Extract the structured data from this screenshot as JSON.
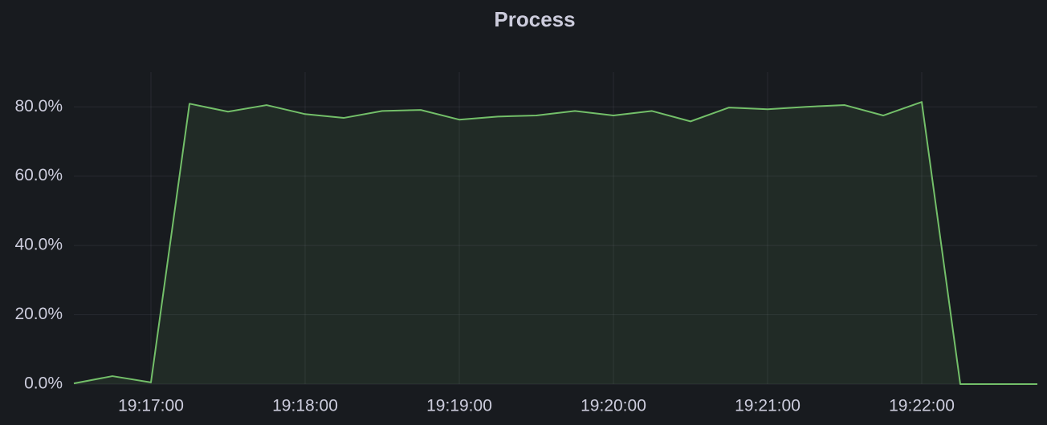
{
  "chart_data": {
    "type": "area",
    "title": "Process",
    "x": [
      "19:16:30",
      "19:16:45",
      "19:17:00",
      "19:17:15",
      "19:17:30",
      "19:17:45",
      "19:18:00",
      "19:18:15",
      "19:18:30",
      "19:18:45",
      "19:19:00",
      "19:19:15",
      "19:19:30",
      "19:19:45",
      "19:20:00",
      "19:20:15",
      "19:20:30",
      "19:20:45",
      "19:21:00",
      "19:21:15",
      "19:21:30",
      "19:21:45",
      "19:22:00",
      "19:22:15",
      "19:22:30",
      "19:22:45"
    ],
    "values": [
      0.2,
      2.3,
      0.5,
      80.9,
      78.6,
      80.5,
      77.9,
      76.8,
      78.8,
      79.1,
      76.3,
      77.2,
      77.5,
      78.8,
      77.5,
      78.8,
      75.8,
      79.8,
      79.3,
      80.0,
      80.5,
      77.5,
      81.4,
      0,
      0,
      0
    ],
    "color": "#73bf69",
    "xlim": [
      "19:16:30",
      "19:22:45"
    ],
    "xticks": [
      "19:17:00",
      "19:18:00",
      "19:19:00",
      "19:20:00",
      "19:21:00",
      "19:22:00"
    ],
    "ylim": [
      0,
      90
    ],
    "yticks": [
      {
        "value": 0,
        "label": "0.0%"
      },
      {
        "value": 20,
        "label": "20.0%"
      },
      {
        "value": 40,
        "label": "40.0%"
      },
      {
        "value": 60,
        "label": "60.0%"
      },
      {
        "value": 80,
        "label": "80.0%"
      }
    ],
    "grid": true
  }
}
